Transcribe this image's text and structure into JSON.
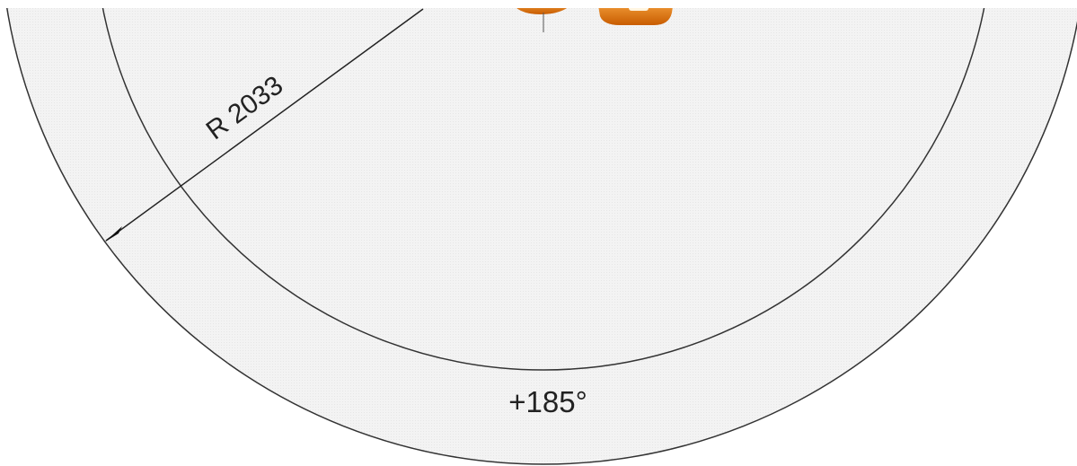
{
  "labels": {
    "radius": "R 2033",
    "angle": "+185°"
  }
}
